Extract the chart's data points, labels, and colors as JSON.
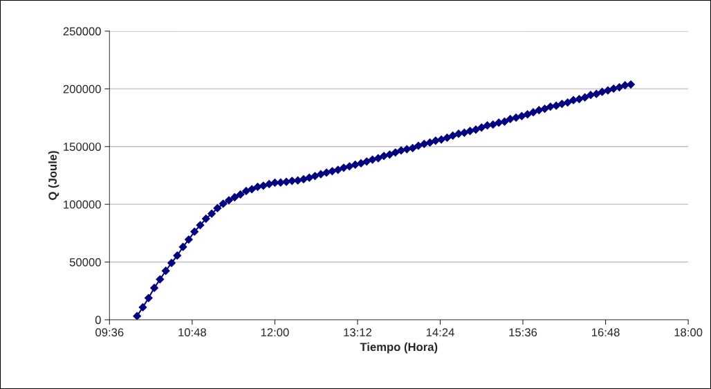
{
  "chart_data": {
    "type": "line",
    "xlabel": "Tiempo (Hora)",
    "ylabel": "Q (Joule)",
    "x": [
      10,
      10.0833,
      10.1667,
      10.25,
      10.3333,
      10.4167,
      10.5,
      10.5833,
      10.6667,
      10.75,
      10.8333,
      10.9167,
      11,
      11.0833,
      11.1667,
      11.25,
      11.3333,
      11.4167,
      11.5,
      11.5833,
      11.6667,
      11.75,
      11.8333,
      11.9167,
      12,
      12.0833,
      12.1667,
      12.25,
      12.3333,
      12.4167,
      12.5,
      12.5833,
      12.6667,
      12.75,
      12.8333,
      12.9167,
      13,
      13.0833,
      13.1667,
      13.25,
      13.3333,
      13.4167,
      13.5,
      13.5833,
      13.6667,
      13.75,
      13.8333,
      13.9167,
      14,
      14.0833,
      14.1667,
      14.25,
      14.3333,
      14.4167,
      14.5,
      14.5833,
      14.6667,
      14.75,
      14.8333,
      14.9167,
      15,
      15.0833,
      15.1667,
      15.25,
      15.3333,
      15.4167,
      15.5,
      15.5833,
      15.6667,
      15.75,
      15.8333,
      15.9167,
      16,
      16.0833,
      16.1667,
      16.25,
      16.3333,
      16.4167,
      16.5,
      16.5833,
      16.6667,
      16.75,
      16.8333,
      16.9167,
      17,
      17.0833,
      17.1667
    ],
    "series": [
      {
        "color": "#000080",
        "values": [
          3200,
          10800,
          18800,
          27600,
          35000,
          42400,
          49200,
          55600,
          63100,
          69500,
          76300,
          81900,
          87500,
          91900,
          96700,
          100500,
          103500,
          106100,
          108500,
          111500,
          113100,
          115100,
          116100,
          117500,
          118700,
          118900,
          119500,
          120300,
          120700,
          121700,
          123100,
          124500,
          126100,
          127500,
          128700,
          129900,
          131700,
          132900,
          134300,
          135500,
          137100,
          138700,
          139900,
          141900,
          143100,
          144900,
          146700,
          147700,
          148700,
          150700,
          152300,
          153500,
          155100,
          156100,
          157700,
          159500,
          161100,
          162000,
          163500,
          164700,
          166500,
          168300,
          169100,
          170700,
          171600,
          173900,
          175100,
          176400,
          177900,
          179700,
          181500,
          182700,
          184600,
          185400,
          187000,
          188200,
          190200,
          191100,
          192600,
          194700,
          195600,
          197400,
          198600,
          200200,
          201400,
          203100,
          203800
        ]
      }
    ],
    "xlim": [
      9.6,
      18
    ],
    "xticks": [
      {
        "value": 9.6,
        "label": "09:36"
      },
      {
        "value": 10.8,
        "label": "10:48"
      },
      {
        "value": 12,
        "label": "12:00"
      },
      {
        "value": 13.2,
        "label": "13:12"
      },
      {
        "value": 14.4,
        "label": "14:24"
      },
      {
        "value": 15.6,
        "label": "15:36"
      },
      {
        "value": 16.8,
        "label": "16:48"
      },
      {
        "value": 18,
        "label": "18:00"
      }
    ],
    "ylim": [
      0,
      250000
    ],
    "yticks": [
      0,
      50000,
      100000,
      150000,
      200000,
      250000
    ],
    "grid": "y",
    "legend": false,
    "marker": "diamond",
    "line_style": "solid"
  }
}
